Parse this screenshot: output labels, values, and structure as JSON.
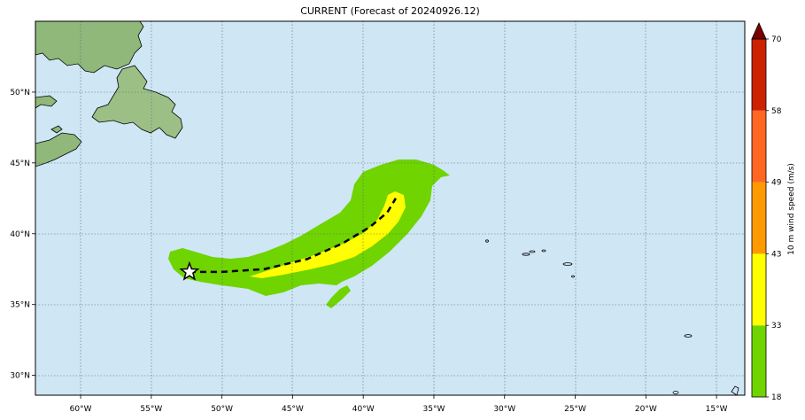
{
  "title": "CURRENT (Forecast of 20240926.12)",
  "map": {
    "lon_range": [
      -63.2,
      -13.0
    ],
    "lat_range": [
      28.6,
      55.0
    ],
    "lon_ticks": [
      "60°W",
      "55°W",
      "50°W",
      "45°W",
      "40°W",
      "35°W",
      "30°W",
      "25°W",
      "20°W",
      "15°W"
    ],
    "lat_ticks": [
      "30°N",
      "35°N",
      "40°N",
      "45°N",
      "50°N"
    ],
    "ocean_color": "#cfe6f5",
    "storm_center": {
      "lon": -52.3,
      "lat": 37.3
    },
    "track": [
      [
        -52.3,
        37.3
      ],
      [
        -50,
        37.3
      ],
      [
        -47,
        37.5
      ],
      [
        -44,
        38.2
      ],
      [
        -41.5,
        39.3
      ],
      [
        -39.5,
        40.5
      ],
      [
        -38.3,
        41.5
      ],
      [
        -37.7,
        42.5
      ]
    ]
  },
  "colorbar": {
    "label": "10 m wind speed (m/s)",
    "levels": [
      "18",
      "33",
      "43",
      "49",
      "58",
      "70"
    ],
    "colors": [
      "#6fd400",
      "#ffff00",
      "#ff9900",
      "#ff6622",
      "#cc2200",
      "#7a0000"
    ]
  }
}
